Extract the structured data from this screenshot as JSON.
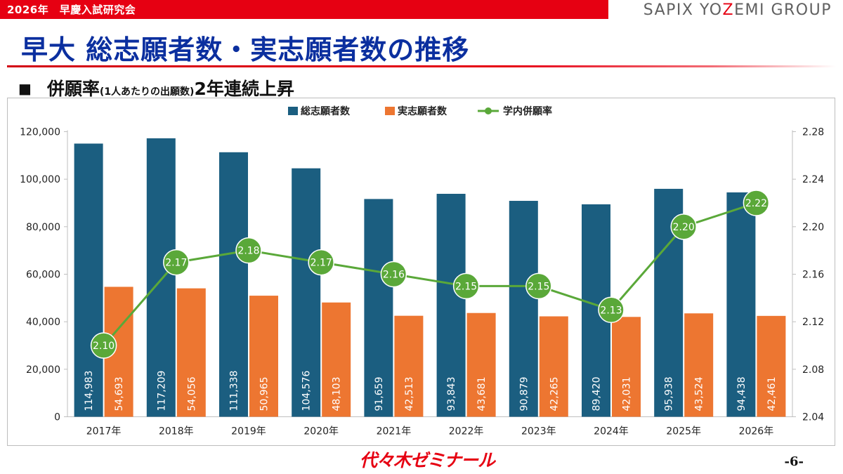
{
  "header": {
    "top_label": "2026年　早慶入試研究会",
    "brand_part1": "SAPIX YO",
    "brand_part2": "Z",
    "brand_part3": "EMI GROUP",
    "accent_color": "#e60012",
    "title_color": "#0b2f9f"
  },
  "title": "早大 総志願者数・実志願者数の推移",
  "subtitle": {
    "bullet": "■",
    "lead": "併願率",
    "note": "(1人あたりの出願数)",
    "tail": "2年連続上昇"
  },
  "footer": {
    "logo_text": "代々木ゼミナール",
    "page_number": "-6-"
  },
  "chart_data": {
    "type": "bar",
    "categories": [
      "2017年",
      "2018年",
      "2019年",
      "2020年",
      "2021年",
      "2022年",
      "2023年",
      "2024年",
      "2025年",
      "2026年"
    ],
    "series": [
      {
        "name": "総志願者数",
        "type": "bar",
        "axis": "left",
        "color": "#1b5e80",
        "values": [
          114983,
          117209,
          111338,
          104576,
          91659,
          93843,
          90879,
          89420,
          95938,
          94438
        ],
        "labels": [
          "114,983",
          "117,209",
          "111,338",
          "104,576",
          "91,659",
          "93,843",
          "90,879",
          "89,420",
          "95,938",
          "94,438"
        ]
      },
      {
        "name": "実志願者数",
        "type": "bar",
        "axis": "left",
        "color": "#ed7631",
        "values": [
          54693,
          54056,
          50965,
          48103,
          42513,
          43681,
          42265,
          42031,
          43524,
          42461
        ],
        "labels": [
          "54,693",
          "54,056",
          "50,965",
          "48,103",
          "42,513",
          "43,681",
          "42,265",
          "42,031",
          "43,524",
          "42,461"
        ]
      },
      {
        "name": "学内併願率",
        "type": "line",
        "axis": "right",
        "color": "#5aa839",
        "values": [
          2.1,
          2.17,
          2.18,
          2.17,
          2.16,
          2.15,
          2.15,
          2.13,
          2.2,
          2.22
        ],
        "labels": [
          "2.10",
          "2.17",
          "2.18",
          "2.17",
          "2.16",
          "2.15",
          "2.15",
          "2.13",
          "2.20",
          "2.22"
        ]
      }
    ],
    "y_left": {
      "min": 0,
      "max": 120000,
      "ticks": [
        0,
        20000,
        40000,
        60000,
        80000,
        100000,
        120000
      ],
      "tick_labels": [
        "0",
        "20,000",
        "40,000",
        "60,000",
        "80,000",
        "100,000",
        "120,000"
      ]
    },
    "y_right": {
      "min": 2.04,
      "max": 2.28,
      "ticks": [
        2.04,
        2.08,
        2.12,
        2.16,
        2.2,
        2.24,
        2.28
      ],
      "tick_labels": [
        "2.04",
        "2.08",
        "2.12",
        "2.16",
        "2.20",
        "2.24",
        "2.28"
      ]
    },
    "legend_position": "top-center",
    "grid": false
  }
}
